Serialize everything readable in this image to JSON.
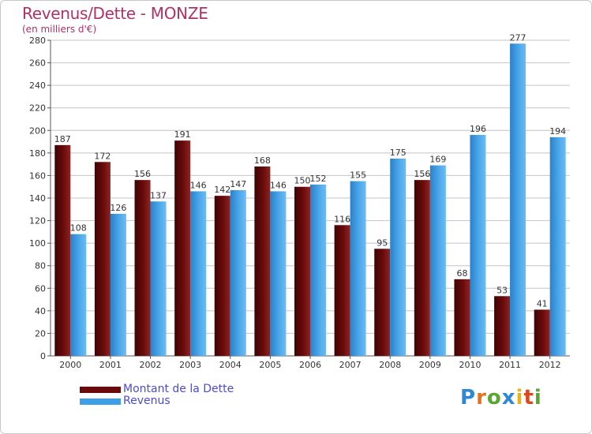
{
  "header": {
    "title": "Revenus/Dette - MONZE",
    "subtitle": "(en milliers d'€)"
  },
  "legend": {
    "items": [
      {
        "label": "Montant de la Dette",
        "color": "#6b0a0a"
      },
      {
        "label": "Revenus",
        "color": "#3f9fe6"
      }
    ]
  },
  "logo": {
    "text": "Proxiti",
    "letter_colors": [
      "#2e88d6",
      "#e8711b",
      "#5aa632",
      "#2e88d6",
      "#e8b21b",
      "#d84a1b",
      "#5aa632"
    ]
  },
  "chart_data": {
    "type": "bar",
    "categories": [
      "2000",
      "2001",
      "2002",
      "2003",
      "2004",
      "2005",
      "2006",
      "2007",
      "2008",
      "2009",
      "2010",
      "2011",
      "2012"
    ],
    "series": [
      {
        "name": "Montant de la Dette",
        "values": [
          187,
          172,
          156,
          191,
          142,
          168,
          150,
          116,
          95,
          156,
          68,
          53,
          41
        ],
        "color": "#6b0a0a"
      },
      {
        "name": "Revenus",
        "values": [
          108,
          126,
          137,
          146,
          147,
          146,
          152,
          155,
          175,
          169,
          196,
          277,
          194
        ],
        "color": "#3f9fe6"
      }
    ],
    "yticks": [
      0,
      20,
      40,
      60,
      80,
      100,
      120,
      140,
      160,
      180,
      200,
      220,
      240,
      260,
      280
    ],
    "ylim": [
      0,
      280
    ],
    "grid": true,
    "legend_position": "bottom-left",
    "title": "Revenus/Dette - MONZE",
    "ylabel": "(en milliers d'€)",
    "xlabel": ""
  }
}
